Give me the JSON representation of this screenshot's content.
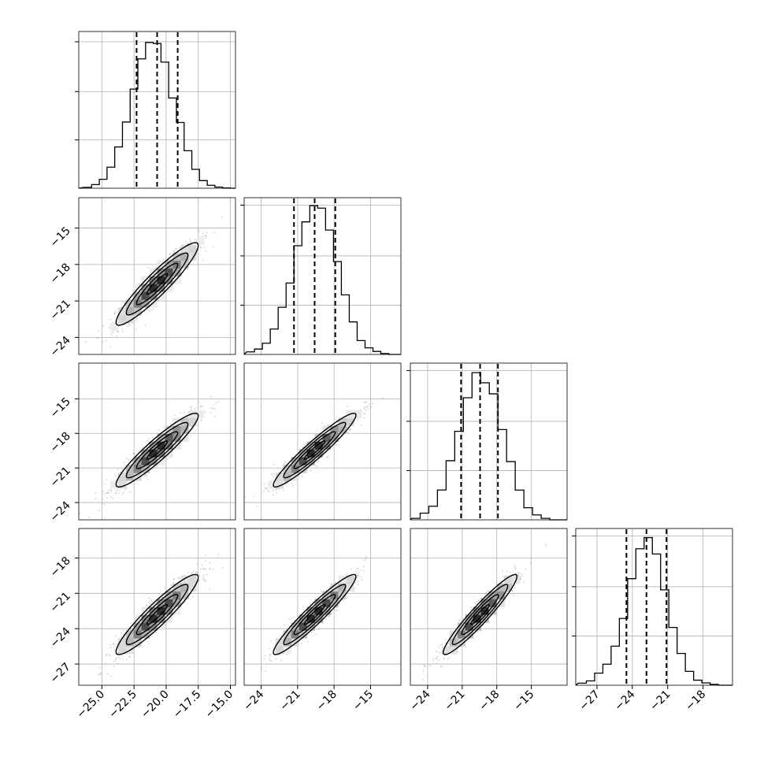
{
  "chart_data": {
    "type": "corner",
    "grid": true,
    "colors": {
      "hist": "#000000",
      "scatter": "#9a9a9a",
      "grid": "#b0b0b0"
    },
    "panels_1d": [
      {
        "var": 0,
        "xlim": [
          -26.8,
          -14.6
        ],
        "ylim": [
          0,
          1.07
        ],
        "bins": [
          -26.4,
          -25.8,
          -25.2,
          -24.6,
          -24.0,
          -23.4,
          -22.8,
          -22.2,
          -21.6,
          -21.0,
          -20.4,
          -19.8,
          -19.2,
          -18.6,
          -18.0,
          -17.4,
          -16.8,
          -16.2,
          -15.6,
          -15.0
        ],
        "heights": [
          0.006,
          0.025,
          0.061,
          0.144,
          0.282,
          0.452,
          0.677,
          0.883,
          0.995,
          0.988,
          0.861,
          0.616,
          0.449,
          0.256,
          0.129,
          0.052,
          0.02,
          0.008,
          0.002
        ],
        "quantiles": [
          -22.3,
          -20.7,
          -19.1
        ]
      },
      {
        "var": 1,
        "xlim": [
          -25.4,
          -12.5
        ],
        "ylim": [
          0,
          1.05
        ],
        "bins": [
          -25.2,
          -24.55,
          -23.9,
          -23.25,
          -22.6,
          -21.95,
          -21.3,
          -20.65,
          -20.0,
          -19.35,
          -18.7,
          -18.05,
          -17.4,
          -16.75,
          -16.1,
          -15.45,
          -14.8,
          -14.15,
          -13.5
        ],
        "heights": [
          0.017,
          0.036,
          0.075,
          0.17,
          0.316,
          0.478,
          0.728,
          0.888,
          0.997,
          0.98,
          0.833,
          0.622,
          0.399,
          0.218,
          0.093,
          0.044,
          0.02,
          0.006
        ],
        "quantiles": [
          -21.3,
          -19.6,
          -17.9
        ]
      },
      {
        "var": 2,
        "xlim": [
          -25.5,
          -11.9
        ],
        "ylim": [
          0,
          1.05
        ],
        "bins": [
          -25.4,
          -24.65,
          -23.9,
          -23.15,
          -22.4,
          -21.65,
          -20.9,
          -20.15,
          -19.4,
          -18.65,
          -17.9,
          -17.15,
          -16.4,
          -15.65,
          -14.9,
          -14.15,
          -13.4
        ],
        "heights": [
          0.01,
          0.045,
          0.091,
          0.2,
          0.396,
          0.593,
          0.818,
          0.986,
          0.918,
          0.844,
          0.605,
          0.39,
          0.199,
          0.081,
          0.033,
          0.01
        ],
        "quantiles": [
          -21.1,
          -19.45,
          -17.9
        ]
      },
      {
        "var": 3,
        "xlim": [
          -28.8,
          -15.5
        ],
        "ylim": [
          0,
          1.05
        ],
        "bins": [
          -28.6,
          -27.9,
          -27.2,
          -26.5,
          -25.8,
          -25.1,
          -24.4,
          -23.7,
          -23.0,
          -22.3,
          -21.6,
          -20.9,
          -20.2,
          -19.5,
          -18.8,
          -18.1,
          -17.4,
          -16.7
        ],
        "heights": [
          0.014,
          0.029,
          0.081,
          0.141,
          0.262,
          0.447,
          0.714,
          0.914,
          0.989,
          0.879,
          0.639,
          0.387,
          0.213,
          0.093,
          0.034,
          0.016,
          0.006
        ],
        "quantiles": [
          -24.5,
          -22.8,
          -21.1
        ]
      }
    ],
    "panels_2d": [
      {
        "row": 1,
        "col": 0,
        "center": [
          -20.7,
          -19.6
        ],
        "sx": 1.6,
        "sy": 1.7,
        "rho": 0.93,
        "xlim": [
          -26.8,
          -14.6
        ],
        "ylim": [
          -25.4,
          -12.5
        ]
      },
      {
        "row": 2,
        "col": 0,
        "center": [
          -20.7,
          -19.45
        ],
        "sx": 1.6,
        "sy": 1.6,
        "rho": 0.93,
        "xlim": [
          -26.8,
          -14.6
        ],
        "ylim": [
          -25.5,
          -11.9
        ]
      },
      {
        "row": 2,
        "col": 1,
        "center": [
          -19.6,
          -19.45
        ],
        "sx": 1.7,
        "sy": 1.6,
        "rho": 0.95,
        "xlim": [
          -25.4,
          -12.5
        ],
        "ylim": [
          -25.5,
          -11.9
        ]
      },
      {
        "row": 3,
        "col": 0,
        "center": [
          -20.7,
          -22.8
        ],
        "sx": 1.6,
        "sy": 1.7,
        "rho": 0.93,
        "xlim": [
          -26.8,
          -14.6
        ],
        "ylim": [
          -28.8,
          -15.5
        ]
      },
      {
        "row": 3,
        "col": 1,
        "center": [
          -19.6,
          -22.8
        ],
        "sx": 1.7,
        "sy": 1.7,
        "rho": 0.95,
        "xlim": [
          -25.4,
          -12.5
        ],
        "ylim": [
          -28.8,
          -15.5
        ]
      },
      {
        "row": 3,
        "col": 2,
        "center": [
          -19.45,
          -22.8
        ],
        "sx": 1.6,
        "sy": 1.7,
        "rho": 0.95,
        "xlim": [
          -25.5,
          -11.9
        ],
        "ylim": [
          -28.8,
          -15.5
        ]
      }
    ],
    "contour_levels": [
      0.5,
      1.0,
      1.5,
      2.0
    ],
    "x_ticks": [
      {
        "values": [
          -25.0,
          -22.5,
          -20.0,
          -17.5,
          -15.0
        ],
        "labels": [
          "−25.0",
          "−22.5",
          "−20.0",
          "−17.5",
          "−15.0"
        ]
      },
      {
        "values": [
          -24,
          -21,
          -18,
          -15
        ],
        "labels": [
          "−24",
          "−21",
          "−18",
          "−15"
        ]
      },
      {
        "values": [
          -24,
          -21,
          -18,
          -15
        ],
        "labels": [
          "−24",
          "−21",
          "−18",
          "−15"
        ]
      },
      {
        "values": [
          -27,
          -24,
          -21,
          -18
        ],
        "labels": [
          "−27",
          "−24",
          "−21",
          "−18"
        ]
      }
    ],
    "y_ticks": [
      null,
      {
        "values": [
          -15,
          -18,
          -21,
          -24
        ],
        "labels": [
          "−15",
          "−18",
          "−21",
          "−24"
        ]
      },
      {
        "values": [
          -15,
          -18,
          -21,
          -24
        ],
        "labels": [
          "−15",
          "−18",
          "−21",
          "−24"
        ]
      },
      {
        "values": [
          -18,
          -21,
          -24,
          -27
        ],
        "labels": [
          "−18",
          "−21",
          "−24",
          "−27"
        ]
      }
    ],
    "hist_yticks": [
      0.33,
      0.66,
      1.0
    ]
  }
}
